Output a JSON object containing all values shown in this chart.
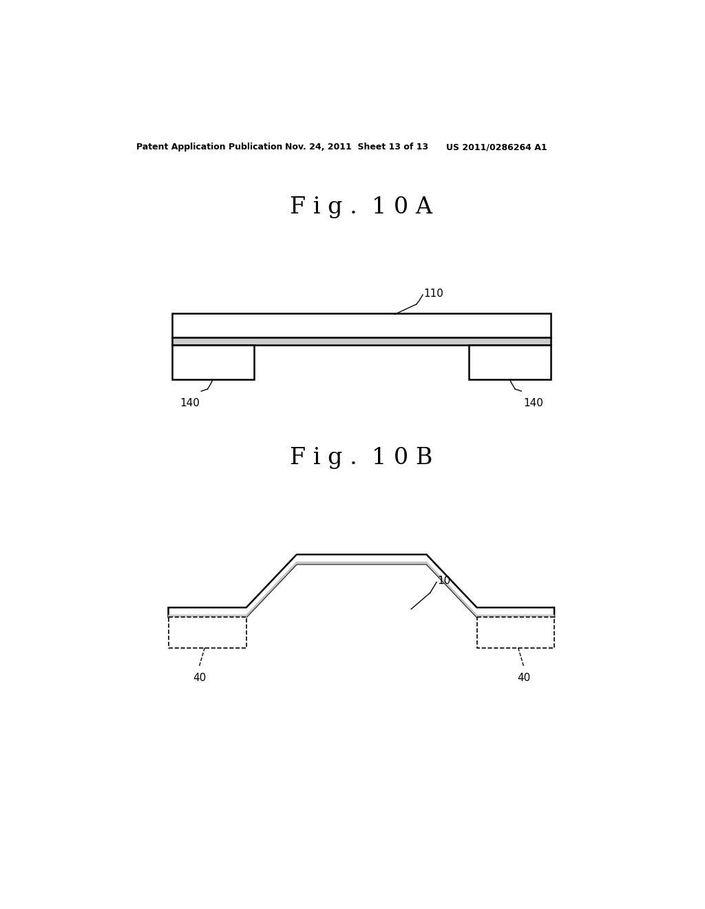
{
  "background_color": "#ffffff",
  "header_text": "Patent Application Publication",
  "header_date": "Nov. 24, 2011  Sheet 13 of 13",
  "header_patent": "US 2011/0286264 A1",
  "fig10A_title": "F i g .  1 0 A",
  "fig10B_title": "F i g .  1 0 B",
  "label_110": "110",
  "label_140_left": "140",
  "label_140_right": "140",
  "label_10": "10",
  "label_40_left": "40",
  "label_40_right": "40"
}
